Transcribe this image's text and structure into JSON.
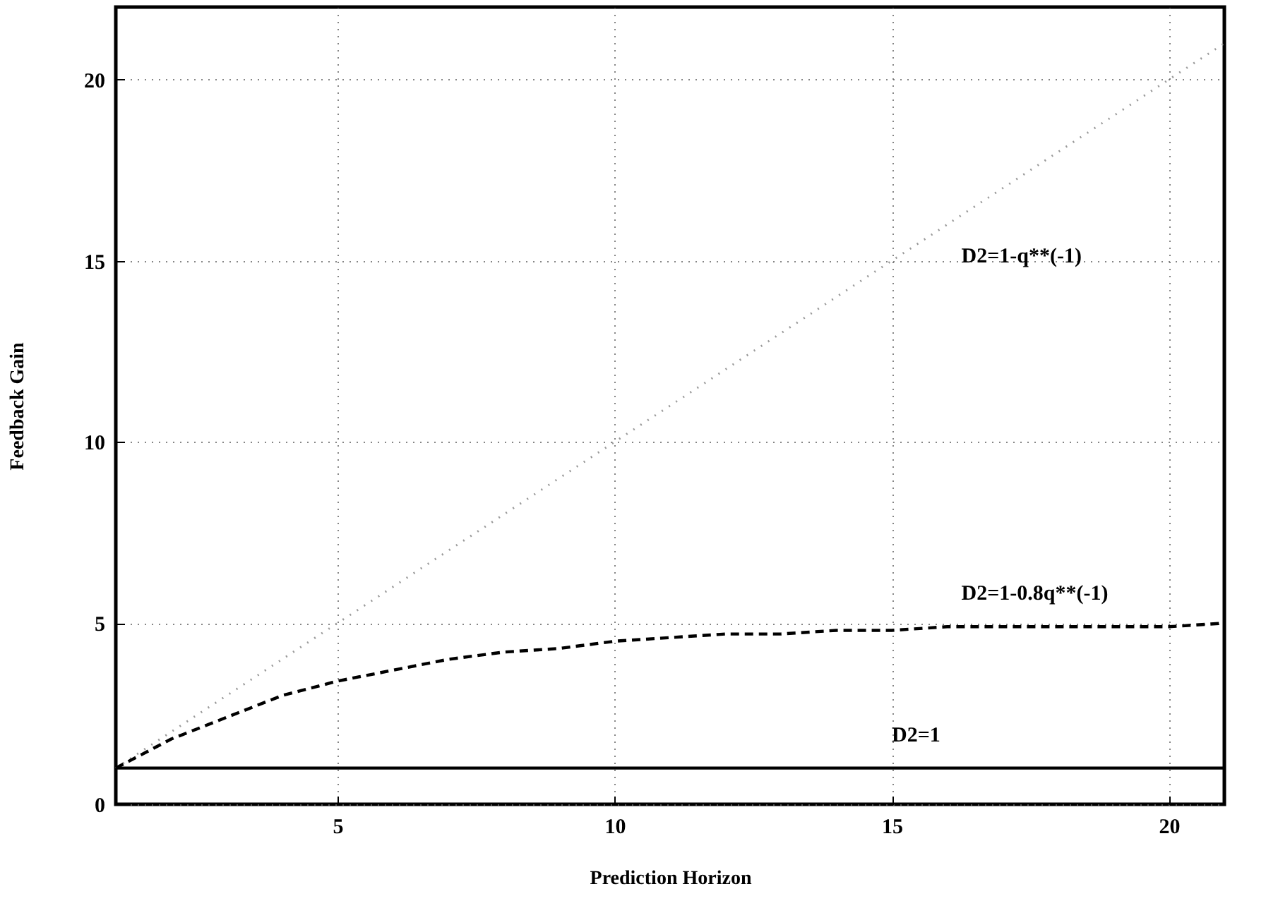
{
  "chart_data": {
    "type": "line",
    "xlabel": "Prediction Horizon",
    "ylabel": "Feedback Gain",
    "x": [
      1,
      2,
      3,
      4,
      5,
      6,
      7,
      8,
      9,
      10,
      11,
      12,
      13,
      14,
      15,
      16,
      17,
      18,
      19,
      20,
      21
    ],
    "series": [
      {
        "name": "D2=1-q**(-1)",
        "color": "#9a9a9a",
        "line_style": "dotted",
        "values": [
          1,
          2,
          3,
          4,
          5,
          6,
          7,
          8,
          9,
          10,
          11,
          12,
          13,
          14,
          15,
          16,
          17,
          18,
          19,
          20,
          21
        ]
      },
      {
        "name": "D2=1-0.8q**(-1)",
        "color": "#000000",
        "line_style": "dashed",
        "values": [
          1,
          1.8,
          2.4,
          3.0,
          3.4,
          3.7,
          4.0,
          4.2,
          4.3,
          4.5,
          4.6,
          4.7,
          4.7,
          4.8,
          4.8,
          4.9,
          4.9,
          4.9,
          4.9,
          4.9,
          5.0
        ]
      },
      {
        "name": "D2=1",
        "color": "#000000",
        "line_style": "solid",
        "values": [
          1,
          1,
          1,
          1,
          1,
          1,
          1,
          1,
          1,
          1,
          1,
          1,
          1,
          1,
          1,
          1,
          1,
          1,
          1,
          1,
          1
        ]
      }
    ],
    "xlim": [
      1,
      21
    ],
    "ylim": [
      0,
      22
    ],
    "xticks": [
      5,
      10,
      15,
      20
    ],
    "yticks": [
      0,
      5,
      10,
      15,
      20
    ],
    "grid": true,
    "marker": "none"
  }
}
